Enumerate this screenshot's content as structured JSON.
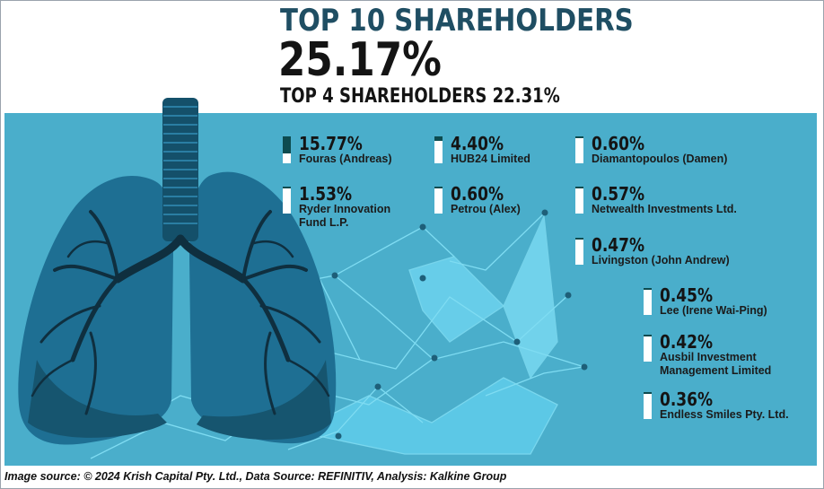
{
  "header": {
    "title": "TOP 10 SHAREHOLDERS",
    "total_pct": "25.17%",
    "top4_text": "TOP 4 SHAREHOLDERS 22.31%"
  },
  "chart_data": {
    "type": "bar",
    "title": "TOP 10 SHAREHOLDERS",
    "categories": [
      "Fouras (Andreas)",
      "HUB24 Limited",
      "Diamantopoulos (Damen)",
      "Ryder Innovation Fund L.P.",
      "Petrou (Alex)",
      "Netwealth Investments Ltd.",
      "Livingston (John Andrew)",
      "Lee (Irene Wai-Ping)",
      "Ausbil Investment Management Limited",
      "Endless Smiles Pty. Ltd."
    ],
    "values": [
      15.77,
      4.4,
      0.6,
      1.53,
      0.6,
      0.57,
      0.47,
      0.45,
      0.42,
      0.36
    ],
    "labels": [
      "15.77%",
      "4.40%",
      "0.60%",
      "1.53%",
      "0.60%",
      "0.57%",
      "0.47%",
      "0.45%",
      "0.42%",
      "0.36%"
    ],
    "name_lines": [
      [
        "Fouras (Andreas)"
      ],
      [
        "HUB24 Limited"
      ],
      [
        "Diamantopoulos (Damen)"
      ],
      [
        "Ryder Innovation",
        "Fund L.P."
      ],
      [
        "Petrou (Alex)"
      ],
      [
        "Netwealth Investments Ltd."
      ],
      [
        "Livingston (John Andrew)"
      ],
      [
        "Lee (Irene Wai-Ping)"
      ],
      [
        "Ausbil Investment",
        "Management Limited"
      ],
      [
        "Endless Smiles Pty. Ltd."
      ]
    ],
    "total": "25.17%",
    "top4": "22.31%",
    "max_value": 25
  },
  "colors": {
    "title": "#1f4e63",
    "panel": "#4aaecb",
    "bar_fill": "#0d4b4f",
    "bar_bg": "#ffffff",
    "lung": "#1e6f93",
    "lung_dark": "#16556f",
    "network": "#7fdcf2"
  },
  "footer": {
    "source_text": "Image source: © 2024 Krish Capital Pty. Ltd., Data Source: REFINITIV, Analysis: Kalkine Group"
  }
}
